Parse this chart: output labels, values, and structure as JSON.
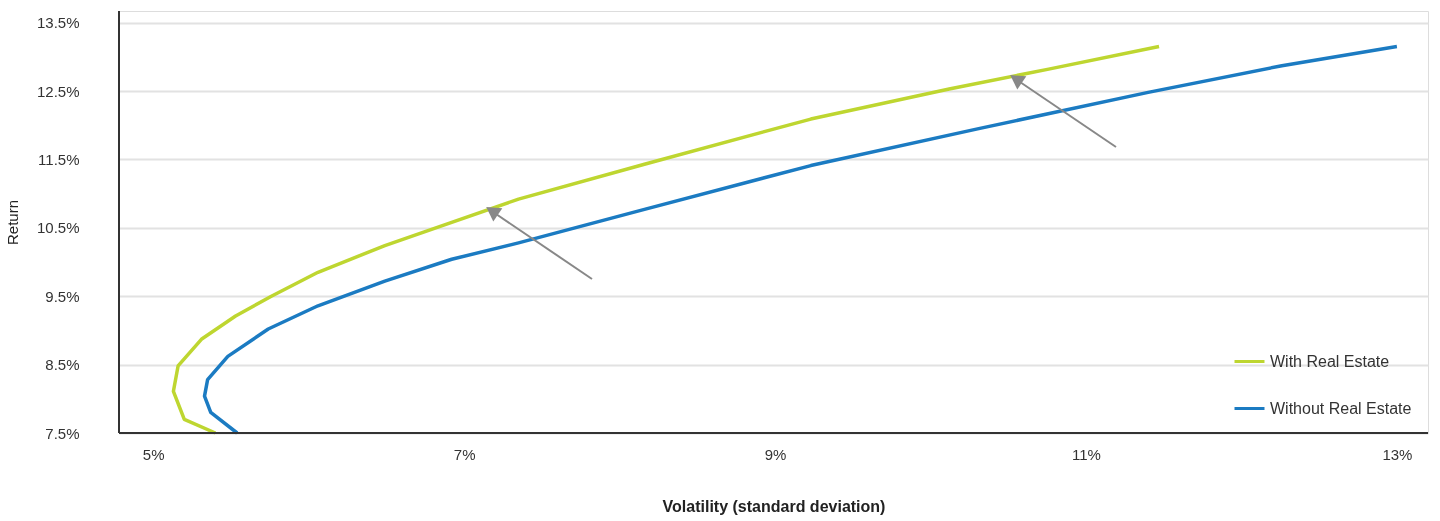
{
  "chart_data": {
    "type": "line",
    "xlabel": "Volatility (standard deviation)",
    "ylabel": "Return",
    "xlim": [
      4.78,
      13.2
    ],
    "ylim": [
      7.5,
      13.67
    ],
    "xticks": [
      {
        "value": 5,
        "label": "5%"
      },
      {
        "value": 7,
        "label": "7%"
      },
      {
        "value": 9,
        "label": "9%"
      },
      {
        "value": 11,
        "label": "11%"
      },
      {
        "value": 13,
        "label": "13%"
      }
    ],
    "yticks": [
      {
        "value": 7.5,
        "label": "7.5%"
      },
      {
        "value": 8.5,
        "label": "8.5%"
      },
      {
        "value": 9.5,
        "label": "9.5%"
      },
      {
        "value": 10.5,
        "label": "10.5%"
      },
      {
        "value": 11.5,
        "label": "11.5%"
      },
      {
        "value": 12.5,
        "label": "12.5%"
      },
      {
        "value": 13.5,
        "label": "13.5%"
      }
    ],
    "grid": "y",
    "legend": "bottom right",
    "marker": "none",
    "line_style": "solid",
    "series": [
      {
        "name": "With Real Estate",
        "color": "#bed630",
        "x": [
          5.4,
          5.2,
          5.13,
          5.16,
          5.31,
          5.53,
          5.76,
          6.06,
          6.49,
          6.92,
          7.35,
          8.16,
          9.23,
          10.12,
          10.76,
          11.47
        ],
        "values": [
          7.5,
          7.7,
          8.11,
          8.48,
          8.87,
          9.21,
          9.5,
          9.85,
          10.24,
          10.58,
          10.92,
          11.43,
          12.09,
          12.53,
          12.82,
          13.15
        ]
      },
      {
        "name": "Without Real Estate",
        "color": "#1b7bc2",
        "x": [
          5.54,
          5.37,
          5.33,
          5.35,
          5.48,
          5.74,
          6.06,
          6.49,
          6.92,
          7.35,
          8.16,
          9.23,
          10.31,
          11.4,
          12.26,
          13.0
        ],
        "values": [
          7.5,
          7.8,
          8.04,
          8.28,
          8.62,
          9.02,
          9.36,
          9.72,
          10.04,
          10.28,
          10.77,
          11.41,
          11.95,
          12.48,
          12.87,
          13.15
        ]
      }
    ]
  }
}
